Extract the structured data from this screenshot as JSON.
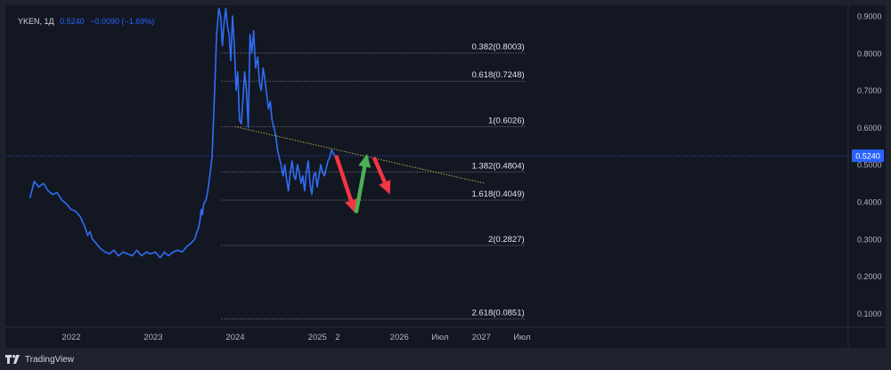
{
  "legend": {
    "symbol": "YKEN, 1Д",
    "last": "0.5240",
    "change": "−0.0090 (−1.69%)"
  },
  "branding": {
    "name": "TradingView",
    "icon": "tradingview-logo-icon"
  },
  "colors": {
    "background": "#131722",
    "price_line": "#2f6df6",
    "trendline": "#b7a94a",
    "arrow_down": "#f23645",
    "arrow_up": "#4caf50",
    "axis_text": "#b2b5be",
    "price_label_bg": "#2962ff"
  },
  "chart_data": {
    "type": "line",
    "ylim": [
      0.08,
      0.92
    ],
    "x_ticks": [
      "2022",
      "2023",
      "2024",
      "2025",
      "2",
      "2026",
      "Июл",
      "2027",
      "Июл"
    ],
    "x_tick_dates": [
      "2022-01-01",
      "2023-01-01",
      "2024-01-01",
      "2025-01-01",
      "2025-04-01",
      "2026-01-01",
      "2026-07-01",
      "2027-01-01",
      "2027-07-01"
    ],
    "y_ticks": [
      "0.9000",
      "0.8000",
      "0.7000",
      "0.6000",
      "0.5000",
      "0.4000",
      "0.3000",
      "0.2000",
      "0.1000"
    ],
    "y_tick_values": [
      0.9,
      0.8,
      0.7,
      0.6,
      0.5,
      0.4,
      0.3,
      0.2,
      0.1
    ],
    "last_price_label": "0.5240",
    "last_price": 0.524,
    "series": [
      {
        "x": [
          "2021-07-01",
          "2021-07-20",
          "2021-08-10",
          "2021-08-30",
          "2021-09-20",
          "2021-10-10",
          "2021-10-30",
          "2021-11-20",
          "2021-12-10",
          "2021-12-30",
          "2022-01-20",
          "2022-02-10",
          "2022-03-01",
          "2022-03-15",
          "2022-03-25",
          "2022-04-05",
          "2022-04-20",
          "2022-05-10",
          "2022-06-01",
          "2022-06-20",
          "2022-07-10",
          "2022-07-30",
          "2022-08-20",
          "2022-09-10",
          "2022-09-30",
          "2022-10-20",
          "2022-11-10",
          "2022-12-01",
          "2022-12-20",
          "2023-01-10",
          "2023-02-01",
          "2023-02-20",
          "2023-03-10",
          "2023-03-30",
          "2023-04-20",
          "2023-05-10",
          "2023-05-30",
          "2023-06-20",
          "2023-07-05",
          "2023-07-15",
          "2023-07-22",
          "2023-07-28",
          "2023-08-03",
          "2023-08-08",
          "2023-08-12",
          "2023-08-18",
          "2023-08-24",
          "2023-09-01",
          "2023-09-10",
          "2023-09-20",
          "2023-09-30",
          "2023-10-10",
          "2023-10-20",
          "2023-10-28",
          "2023-11-05",
          "2023-11-12",
          "2023-11-20",
          "2023-11-28",
          "2023-12-05",
          "2023-12-12",
          "2023-12-20",
          "2023-12-28",
          "2024-01-05",
          "2024-01-12",
          "2024-01-20",
          "2024-01-28",
          "2024-02-05",
          "2024-02-12",
          "2024-02-20",
          "2024-02-28",
          "2024-03-07",
          "2024-03-15",
          "2024-03-23",
          "2024-04-01",
          "2024-04-10",
          "2024-04-18",
          "2024-04-26",
          "2024-05-04",
          "2024-05-12",
          "2024-05-20",
          "2024-05-28",
          "2024-06-05",
          "2024-06-13",
          "2024-06-21",
          "2024-06-29",
          "2024-07-07",
          "2024-07-15",
          "2024-07-23",
          "2024-08-01",
          "2024-08-09",
          "2024-08-17",
          "2024-08-25",
          "2024-09-02",
          "2024-09-10",
          "2024-09-18",
          "2024-09-26",
          "2024-10-04",
          "2024-10-12",
          "2024-10-20",
          "2024-10-28",
          "2024-11-05",
          "2024-11-13",
          "2024-11-21",
          "2024-11-29",
          "2024-12-07",
          "2024-12-15",
          "2024-12-23",
          "2024-12-31",
          "2025-01-08",
          "2025-01-16",
          "2025-01-24",
          "2025-02-01",
          "2025-02-09",
          "2025-02-17",
          "2025-02-25",
          "2025-03-05",
          "2025-03-13",
          "2025-03-21"
        ],
        "y": [
          0.41,
          0.455,
          0.44,
          0.45,
          0.43,
          0.42,
          0.425,
          0.405,
          0.395,
          0.38,
          0.375,
          0.36,
          0.335,
          0.31,
          0.32,
          0.3,
          0.29,
          0.275,
          0.265,
          0.26,
          0.27,
          0.255,
          0.265,
          0.26,
          0.255,
          0.27,
          0.255,
          0.265,
          0.26,
          0.265,
          0.25,
          0.265,
          0.255,
          0.265,
          0.27,
          0.265,
          0.28,
          0.29,
          0.3,
          0.32,
          0.33,
          0.35,
          0.38,
          0.365,
          0.39,
          0.4,
          0.405,
          0.43,
          0.47,
          0.52,
          0.68,
          0.85,
          0.92,
          0.9,
          0.82,
          0.88,
          0.92,
          0.87,
          0.85,
          0.78,
          0.9,
          0.82,
          0.7,
          0.75,
          0.62,
          0.61,
          0.68,
          0.75,
          0.7,
          0.6,
          0.85,
          0.8,
          0.86,
          0.76,
          0.79,
          0.72,
          0.7,
          0.76,
          0.73,
          0.69,
          0.65,
          0.67,
          0.62,
          0.6,
          0.58,
          0.54,
          0.52,
          0.5,
          0.47,
          0.5,
          0.46,
          0.43,
          0.48,
          0.51,
          0.47,
          0.46,
          0.5,
          0.48,
          0.45,
          0.47,
          0.43,
          0.48,
          0.51,
          0.45,
          0.42,
          0.47,
          0.48,
          0.44,
          0.47,
          0.5,
          0.48,
          0.47,
          0.49,
          0.51,
          0.52,
          0.54,
          0.53,
          0.524
        ]
      }
    ],
    "fib_levels": [
      {
        "label": "0.382(0.8003)",
        "value": 0.8003
      },
      {
        "label": "0.618(0.7248)",
        "value": 0.7248
      },
      {
        "label": "1(0.6026)",
        "value": 0.6026
      },
      {
        "label": "1.382(0.4804)",
        "value": 0.4804
      },
      {
        "label": "1.618(0.4049)",
        "value": 0.4049
      },
      {
        "label": "2(0.2827)",
        "value": 0.2827
      },
      {
        "label": "2.618(0.0851)",
        "value": 0.0851
      }
    ],
    "fib_start": "2023-11-01",
    "fib_end": "2027-07-20",
    "trendline": {
      "from": {
        "x": "2023-12-30",
        "y": 0.6026
      },
      "to": {
        "x": "2027-01-15",
        "y": 0.45
      }
    },
    "arrows": [
      {
        "color": "down",
        "from": {
          "x": "2025-03-25",
          "y": 0.525
        },
        "to": {
          "x": "2025-06-18",
          "y": 0.37
        }
      },
      {
        "color": "up",
        "from": {
          "x": "2025-06-22",
          "y": 0.37
        },
        "to": {
          "x": "2025-08-10",
          "y": 0.53
        }
      },
      {
        "color": "down",
        "from": {
          "x": "2025-09-10",
          "y": 0.52
        },
        "to": {
          "x": "2025-11-20",
          "y": 0.42
        }
      }
    ]
  }
}
